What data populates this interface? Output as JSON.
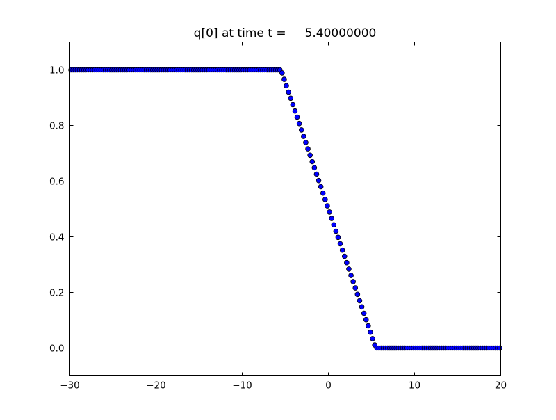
{
  "chart_data": {
    "type": "scatter",
    "title": "q[0] at time t =     5.40000000",
    "xlabel": "",
    "ylabel": "",
    "xlim": [
      -30,
      20
    ],
    "ylim": [
      -0.1,
      1.1
    ],
    "grid": false,
    "xticks": [
      -30,
      -20,
      -10,
      0,
      10,
      20
    ],
    "xtick_labels": [
      "−30",
      "−20",
      "−10",
      "0",
      "10",
      "20"
    ],
    "yticks": [
      0.0,
      0.2,
      0.4,
      0.6,
      0.8,
      1.0
    ],
    "ytick_labels": [
      "0.0",
      "0.2",
      "0.4",
      "0.6",
      "0.8",
      "1.0"
    ],
    "marker": "circle",
    "marker_face_color": "#0000ff",
    "marker_edge_color": "#000000",
    "series": [
      {
        "x": [
          -29.875,
          -29.625,
          -29.375,
          -29.125,
          -28.875,
          -28.625,
          -28.375,
          -28.125,
          -27.875,
          -27.625,
          -27.375,
          -27.125,
          -26.875,
          -26.625,
          -26.375,
          -26.125,
          -25.875,
          -25.625,
          -25.375,
          -25.125,
          -24.875,
          -24.625,
          -24.375,
          -24.125,
          -23.875,
          -23.625,
          -23.375,
          -23.125,
          -22.875,
          -22.625,
          -22.375,
          -22.125,
          -21.875,
          -21.625,
          -21.375,
          -21.125,
          -20.875,
          -20.625,
          -20.375,
          -20.125,
          -19.875,
          -19.625,
          -19.375,
          -19.125,
          -18.875,
          -18.625,
          -18.375,
          -18.125,
          -17.875,
          -17.625,
          -17.375,
          -17.125,
          -16.875,
          -16.625,
          -16.375,
          -16.125,
          -15.875,
          -15.625,
          -15.375,
          -15.125,
          -14.875,
          -14.625,
          -14.375,
          -14.125,
          -13.875,
          -13.625,
          -13.375,
          -13.125,
          -12.875,
          -12.625,
          -12.375,
          -12.125,
          -11.875,
          -11.625,
          -11.375,
          -11.125,
          -10.875,
          -10.625,
          -10.375,
          -10.125,
          -9.875,
          -9.625,
          -9.375,
          -9.125,
          -8.875,
          -8.625,
          -8.375,
          -8.125,
          -7.875,
          -7.625,
          -7.375,
          -7.125,
          -6.875,
          -6.625,
          -6.375,
          -6.125,
          -5.875,
          -5.625,
          -5.375,
          -5.125,
          -4.875,
          -4.625,
          -4.375,
          -4.125,
          -3.875,
          -3.625,
          -3.375,
          -3.125,
          -2.875,
          -2.625,
          -2.375,
          -2.125,
          -1.875,
          -1.625,
          -1.375,
          -1.125,
          -0.875,
          -0.625,
          -0.375,
          -0.125,
          0.125,
          0.375,
          0.625,
          0.875,
          1.125,
          1.375,
          1.625,
          1.875,
          2.125,
          2.375,
          2.625,
          2.875,
          3.125,
          3.375,
          3.625,
          3.875,
          4.125,
          4.375,
          4.625,
          4.875,
          5.125,
          5.375,
          5.625,
          5.875,
          6.125,
          6.375,
          6.625,
          6.875,
          7.125,
          7.375,
          7.625,
          7.875,
          8.125,
          8.375,
          8.625,
          8.875,
          9.125,
          9.375,
          9.625,
          9.875,
          10.125,
          10.375,
          10.625,
          10.875,
          11.125,
          11.375,
          11.625,
          11.875,
          12.125,
          12.375,
          12.625,
          12.875,
          13.125,
          13.375,
          13.625,
          13.875,
          14.125,
          14.375,
          14.625,
          14.875,
          15.125,
          15.375,
          15.625,
          15.875,
          16.125,
          16.375,
          16.625,
          16.875,
          17.125,
          17.375,
          17.625,
          17.875,
          18.125,
          18.375,
          18.625,
          18.875,
          19.125,
          19.375,
          19.625,
          19.875
        ],
        "y": [
          1,
          1,
          1,
          1,
          1,
          1,
          1,
          1,
          1,
          1,
          1,
          1,
          1,
          1,
          1,
          1,
          1,
          1,
          1,
          1,
          1,
          1,
          1,
          1,
          1,
          1,
          1,
          1,
          1,
          1,
          1,
          1,
          1,
          1,
          1,
          1,
          1,
          1,
          1,
          1,
          1,
          1,
          1,
          1,
          1,
          1,
          1,
          1,
          1,
          1,
          1,
          1,
          1,
          1,
          1,
          1,
          1,
          1,
          1,
          1,
          1,
          1,
          1,
          1,
          1,
          1,
          1,
          1,
          1,
          1,
          1,
          1,
          1,
          1,
          1,
          1,
          1,
          1,
          1,
          1,
          1,
          1,
          1,
          1,
          1,
          1,
          1,
          1,
          1,
          1,
          1,
          1,
          1,
          1,
          1,
          1,
          1,
          1,
          0.989,
          0.966,
          0.943,
          0.92,
          0.898,
          0.875,
          0.852,
          0.83,
          0.807,
          0.784,
          0.761,
          0.739,
          0.716,
          0.693,
          0.67,
          0.648,
          0.625,
          0.602,
          0.58,
          0.557,
          0.534,
          0.511,
          0.489,
          0.466,
          0.443,
          0.42,
          0.398,
          0.375,
          0.352,
          0.33,
          0.307,
          0.284,
          0.261,
          0.239,
          0.216,
          0.193,
          0.17,
          0.148,
          0.125,
          0.102,
          0.08,
          0.057,
          0.034,
          0.011,
          0,
          0,
          0,
          0,
          0,
          0,
          0,
          0,
          0,
          0,
          0,
          0,
          0,
          0,
          0,
          0,
          0,
          0,
          0,
          0,
          0,
          0,
          0,
          0,
          0,
          0,
          0,
          0,
          0,
          0,
          0,
          0,
          0,
          0,
          0,
          0,
          0,
          0,
          0,
          0,
          0,
          0,
          0,
          0,
          0,
          0,
          0,
          0,
          0,
          0,
          0,
          0,
          0,
          0,
          0,
          0,
          0,
          0
        ]
      }
    ]
  }
}
